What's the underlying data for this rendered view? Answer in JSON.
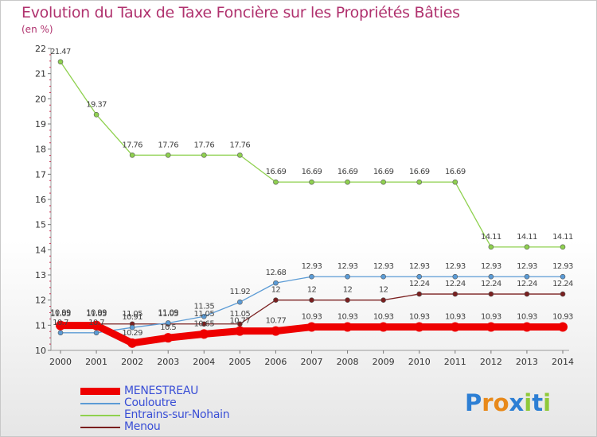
{
  "title": "Evolution du Taux de Taxe Foncière sur les Propriétés Bâties",
  "unit_label": "(en %)",
  "logo": {
    "text": "Proxiti",
    "letters": [
      "P",
      "r",
      "o",
      "x",
      "i",
      "t",
      "i"
    ],
    "colors": [
      "#2d7fd4",
      "#e8891a",
      "#e8891a",
      "#2d7fd4",
      "#8fc93a",
      "#2d7fd4",
      "#8fc93a"
    ]
  },
  "chart_data": {
    "type": "line",
    "title": "Evolution du Taux de Taxe Foncière sur les Propriétés Bâties",
    "ylabel": "(en %)",
    "xlabel": "",
    "x": [
      "2000",
      "2001",
      "2002",
      "2003",
      "2004",
      "2005",
      "2006",
      "2007",
      "2008",
      "2009",
      "2010",
      "2011",
      "2012",
      "2013",
      "2014"
    ],
    "ylim": [
      10,
      22
    ],
    "yticks": [
      10,
      11,
      12,
      13,
      14,
      15,
      16,
      17,
      18,
      19,
      20,
      21,
      22
    ],
    "legend_position": "bottom-left",
    "series": [
      {
        "name": "MENESTREAU",
        "color": "#ee0000",
        "weight": "thick",
        "values": [
          10.99,
          10.99,
          10.29,
          10.5,
          10.65,
          10.77,
          10.77,
          10.93,
          10.93,
          10.93,
          10.93,
          10.93,
          10.93,
          10.93,
          10.93
        ],
        "labels": [
          "10.99",
          "10.99",
          "10.29",
          "10.5",
          "10.65",
          "10.77",
          "10.77",
          "10.93",
          "10.93",
          "10.93",
          "10.93",
          "10.93",
          "10.93",
          "10.93",
          "10.93"
        ]
      },
      {
        "name": "Couloutre",
        "color": "#5b9bd5",
        "weight": "thin",
        "values": [
          10.7,
          10.7,
          10.91,
          11.09,
          11.35,
          11.92,
          12.68,
          12.93,
          12.93,
          12.93,
          12.93,
          12.93,
          12.93,
          12.93,
          12.93
        ],
        "labels": [
          "10.7",
          "10.7",
          "10.91",
          "11.09",
          "11.35",
          "11.92",
          "12.68",
          "12.93",
          "12.93",
          "12.93",
          "12.93",
          "12.93",
          "12.93",
          "12.93",
          "12.93"
        ]
      },
      {
        "name": "Entrains-sur-Nohain",
        "color": "#8fd14f",
        "weight": "thin",
        "values": [
          21.47,
          19.37,
          17.76,
          17.76,
          17.76,
          17.76,
          16.69,
          16.69,
          16.69,
          16.69,
          16.69,
          16.69,
          14.11,
          14.11,
          14.11
        ],
        "labels": [
          "21.47",
          "19.37",
          "17.76",
          "17.76",
          "17.76",
          "17.76",
          "16.69",
          "16.69",
          "16.69",
          "16.69",
          "16.69",
          "16.69",
          "14.11",
          "14.11",
          "14.11"
        ]
      },
      {
        "name": "Menou",
        "color": "#7a1f1f",
        "weight": "thin",
        "values": [
          11.05,
          11.05,
          11.05,
          11.05,
          11.05,
          11.05,
          12,
          12,
          12,
          12,
          12.24,
          12.24,
          12.24,
          12.24,
          12.24
        ],
        "labels": [
          "11.05",
          "11.05",
          "11.05",
          "11.05",
          "11.05",
          "11.05",
          "12",
          "12",
          "12",
          "12",
          "12.24",
          "12.24",
          "12.24",
          "12.24",
          "12.24"
        ]
      }
    ]
  }
}
